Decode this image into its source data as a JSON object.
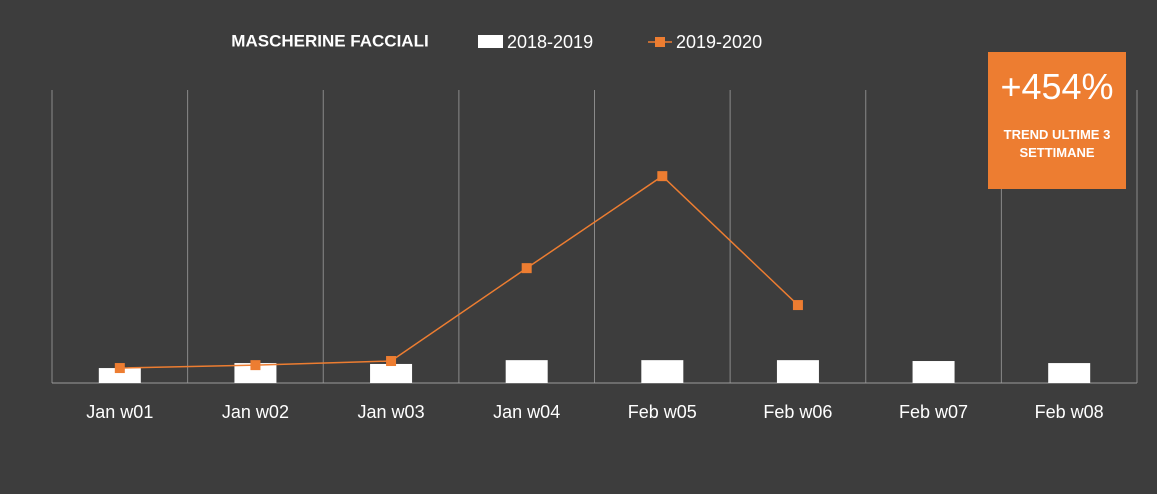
{
  "chart_data": {
    "type": "bar-line",
    "title": "MASCHERINE FACCIALI",
    "categories": [
      "Jan w01",
      "Jan w02",
      "Jan w03",
      "Jan w04",
      "Feb w05",
      "Feb w06",
      "Feb w07",
      "Feb w08"
    ],
    "series": [
      {
        "name": "2018-2019",
        "type": "bar",
        "color": "#ffffff",
        "values": [
          5.1,
          6.8,
          6.5,
          7.8,
          7.8,
          7.8,
          7.5,
          6.8
        ]
      },
      {
        "name": "2019-2020",
        "type": "line",
        "color": "#ed7d31",
        "values": [
          5.1,
          6.1,
          7.5,
          39.2,
          70.6,
          26.6,
          null,
          null
        ]
      }
    ],
    "ylim": [
      0,
      100
    ],
    "annotations": [
      "+454%",
      "TREND ULTIME 3 SETTIMANE"
    ]
  }
}
